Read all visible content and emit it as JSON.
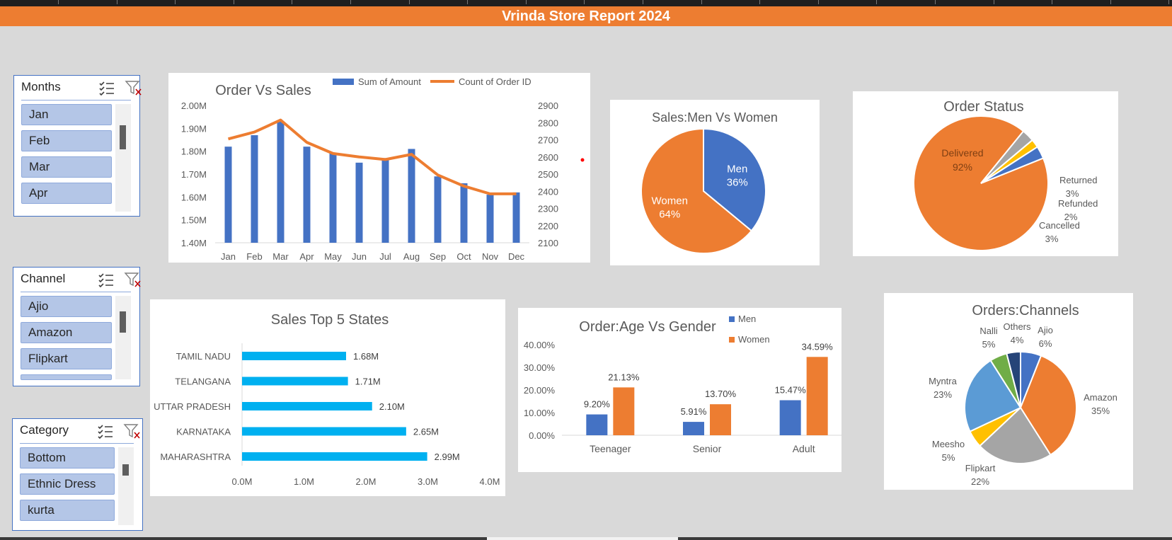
{
  "report_title": "Vrinda Store Report 2024",
  "slicers": [
    {
      "title": "Months",
      "items": [
        "Jan",
        "Feb",
        "Mar",
        "Apr"
      ],
      "multiselect_icon": "multiselect-icon",
      "clear_filter_icon": "clear-filter-icon"
    },
    {
      "title": "Channel",
      "items": [
        "Ajio",
        "Amazon",
        "Flipkart"
      ],
      "multiselect_icon": "multiselect-icon",
      "clear_filter_icon": "clear-filter-icon"
    },
    {
      "title": "Category",
      "items": [
        "Bottom",
        "Ethnic Dress",
        "kurta"
      ],
      "multiselect_icon": "multiselect-icon",
      "clear_filter_icon": "clear-filter-icon"
    }
  ],
  "colors": {
    "blue": "#4472c4",
    "orange": "#ed7d31",
    "gray": "#a5a5a5",
    "yellow": "#ffc000",
    "light_blue": "#5b9bd5",
    "green": "#70ad47",
    "navy": "#264478",
    "cyan": "#00b0f0"
  },
  "chart_data": [
    {
      "id": "order_vs_sales",
      "type": "bar",
      "title": "Order Vs Sales",
      "categories": [
        "Jan",
        "Feb",
        "Mar",
        "Apr",
        "May",
        "Jun",
        "Jul",
        "Aug",
        "Sep",
        "Oct",
        "Nov",
        "Dec"
      ],
      "series": [
        {
          "name": "Sum of Amount",
          "type": "bar",
          "axis": "left",
          "values": [
            1.82,
            1.87,
            1.93,
            1.82,
            1.79,
            1.75,
            1.77,
            1.81,
            1.69,
            1.66,
            1.61,
            1.62
          ]
        },
        {
          "name": "Count of Order ID",
          "type": "line",
          "axis": "right",
          "values": [
            2705,
            2745,
            2815,
            2685,
            2620,
            2600,
            2585,
            2615,
            2495,
            2430,
            2385,
            2385
          ]
        }
      ],
      "left_axis": {
        "ylim": [
          1.4,
          2.0
        ],
        "ticks": [
          "1.40M",
          "1.50M",
          "1.60M",
          "1.70M",
          "1.80M",
          "1.90M",
          "2.00M"
        ]
      },
      "right_axis": {
        "ylim": [
          2100,
          2900
        ],
        "ticks": [
          "2100",
          "2200",
          "2300",
          "2400",
          "2500",
          "2600",
          "2700",
          "2800",
          "2900"
        ]
      },
      "legend": "top"
    },
    {
      "id": "sales_men_women",
      "type": "pie",
      "title": "Sales:Men Vs Women",
      "slices": [
        {
          "label": "Men",
          "value": 36,
          "pct": "36%"
        },
        {
          "label": "Women",
          "value": 64,
          "pct": "64%"
        }
      ]
    },
    {
      "id": "order_status",
      "type": "pie",
      "title": "Order Status",
      "slices": [
        {
          "label": "Delivered",
          "value": 92,
          "pct": "92%"
        },
        {
          "label": "Returned",
          "value": 3,
          "pct": "3%"
        },
        {
          "label": "Refunded",
          "value": 2,
          "pct": "2%"
        },
        {
          "label": "Cancelled",
          "value": 3,
          "pct": "3%"
        }
      ]
    },
    {
      "id": "top5_states",
      "type": "bar",
      "orientation": "horizontal",
      "title": "Sales Top 5 States",
      "categories": [
        "TAMIL NADU",
        "TELANGANA",
        "UTTAR PRADESH",
        "KARNATAKA",
        "MAHARASHTRA"
      ],
      "values": [
        1.68,
        1.71,
        2.1,
        2.65,
        2.99
      ],
      "data_labels": [
        "1.68M",
        "1.71M",
        "2.10M",
        "2.65M",
        "2.99M"
      ],
      "xlim": [
        0,
        4
      ],
      "xticks": [
        "0.0M",
        "1.0M",
        "2.0M",
        "3.0M",
        "4.0M"
      ]
    },
    {
      "id": "age_vs_gender",
      "type": "bar",
      "title": "Order:Age Vs Gender",
      "categories": [
        "Teenager",
        "Senior",
        "Adult"
      ],
      "series": [
        {
          "name": "Men",
          "values": [
            9.2,
            5.91,
            15.47
          ],
          "labels": [
            "9.20%",
            "5.91%",
            "15.47%"
          ]
        },
        {
          "name": "Women",
          "values": [
            21.13,
            13.7,
            34.59
          ],
          "labels": [
            "21.13%",
            "13.70%",
            "34.59%"
          ]
        }
      ],
      "ylim": [
        0,
        40
      ],
      "yticks": [
        "0.00%",
        "10.00%",
        "20.00%",
        "30.00%",
        "40.00%"
      ],
      "legend": "top-right"
    },
    {
      "id": "orders_channels",
      "type": "pie",
      "title": "Orders:Channels",
      "slices": [
        {
          "label": "Ajio",
          "value": 6,
          "pct": "6%"
        },
        {
          "label": "Amazon",
          "value": 35,
          "pct": "35%"
        },
        {
          "label": "Flipkart",
          "value": 22,
          "pct": "22%"
        },
        {
          "label": "Meesho",
          "value": 5,
          "pct": "5%"
        },
        {
          "label": "Myntra",
          "value": 23,
          "pct": "23%"
        },
        {
          "label": "Nalli",
          "value": 5,
          "pct": "5%"
        },
        {
          "label": "Others",
          "value": 4,
          "pct": "4%"
        }
      ]
    }
  ]
}
